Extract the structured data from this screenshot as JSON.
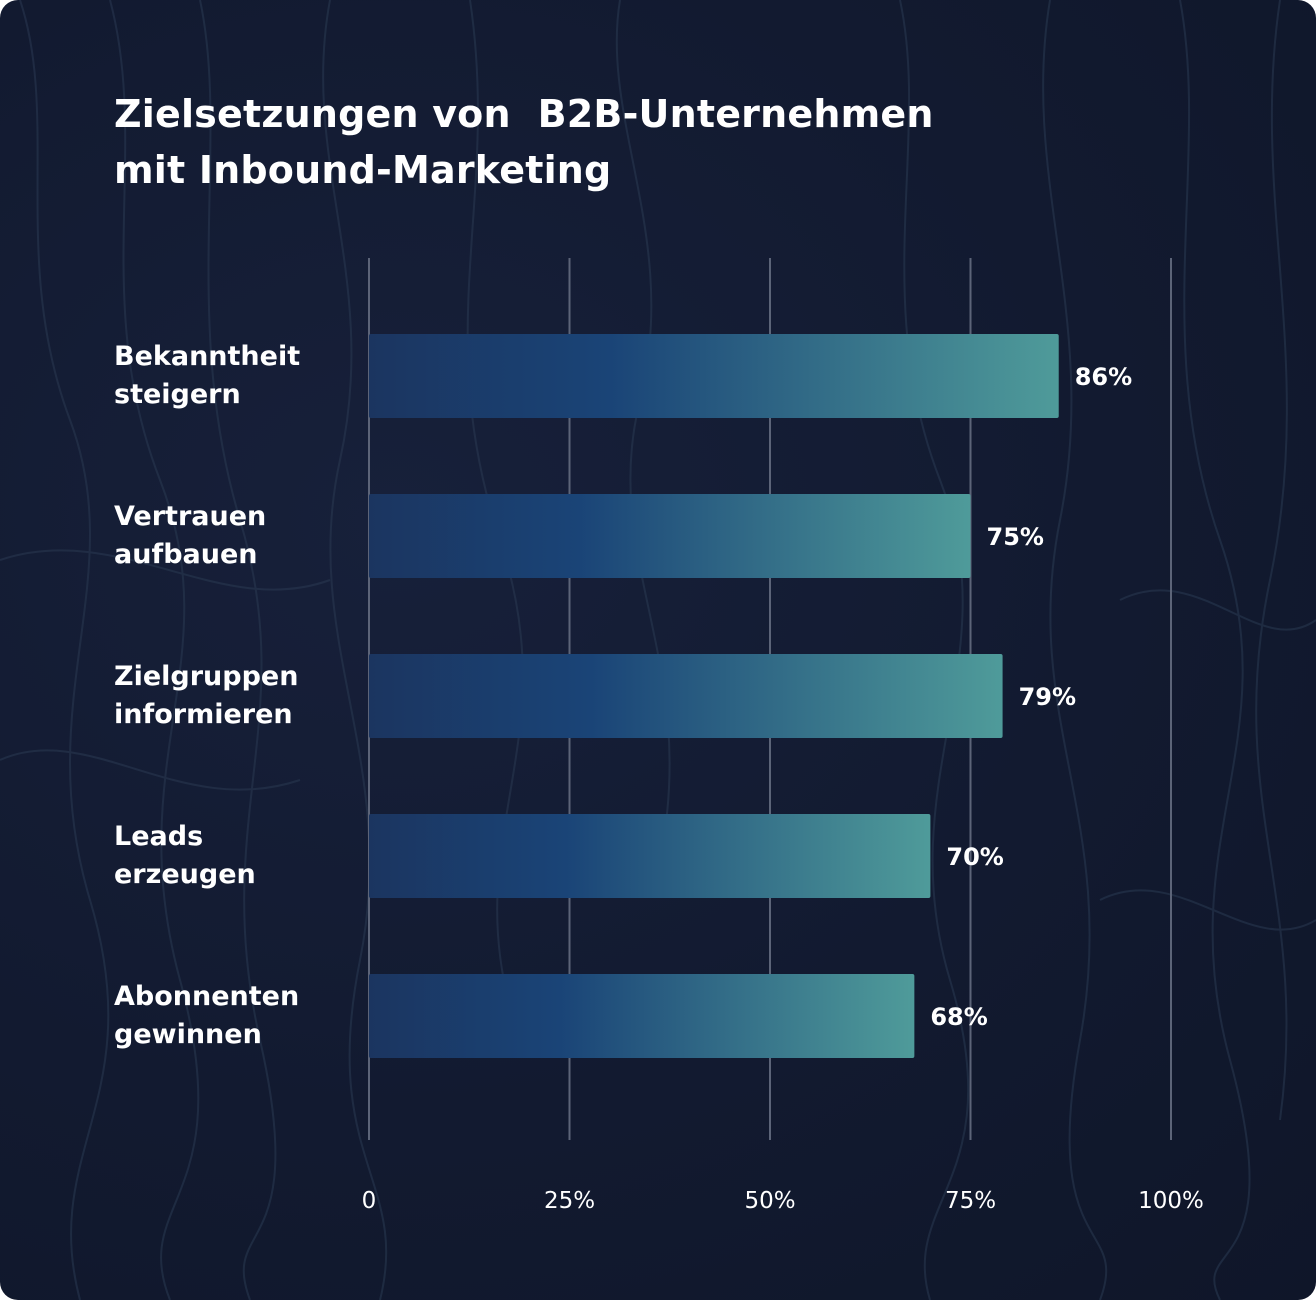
{
  "title": [
    "Zielsetzungen von  B2B-Unternehmen",
    "mit Inbound-Marketing"
  ],
  "colors": {
    "background": "#121a30",
    "bar_start": "#1b3560",
    "bar_mid": "#1a4477",
    "bar_end": "#4f9b9a",
    "grid": "#5c6478",
    "text": "#ffffff"
  },
  "chart_data": {
    "type": "bar",
    "orientation": "horizontal",
    "title": "Zielsetzungen von  B2B-Unternehmen mit Inbound-Marketing",
    "categories": [
      [
        "Bekanntheit",
        "steigern"
      ],
      [
        "Vertrauen",
        "aufbauen"
      ],
      [
        "Zielgruppen",
        "informieren"
      ],
      [
        "Leads",
        "erzeugen"
      ],
      [
        "Abonnenten",
        "gewinnen"
      ]
    ],
    "values": [
      86,
      75,
      79,
      70,
      68
    ],
    "value_labels": [
      "86%",
      "75%",
      "79%",
      "70%",
      "68%"
    ],
    "xlim": [
      0,
      100
    ],
    "ticks": [
      0,
      25,
      50,
      75,
      100
    ],
    "tick_labels": [
      "0",
      "25%",
      "50%",
      "75%",
      "100%"
    ],
    "grid": true,
    "legend": "none"
  }
}
